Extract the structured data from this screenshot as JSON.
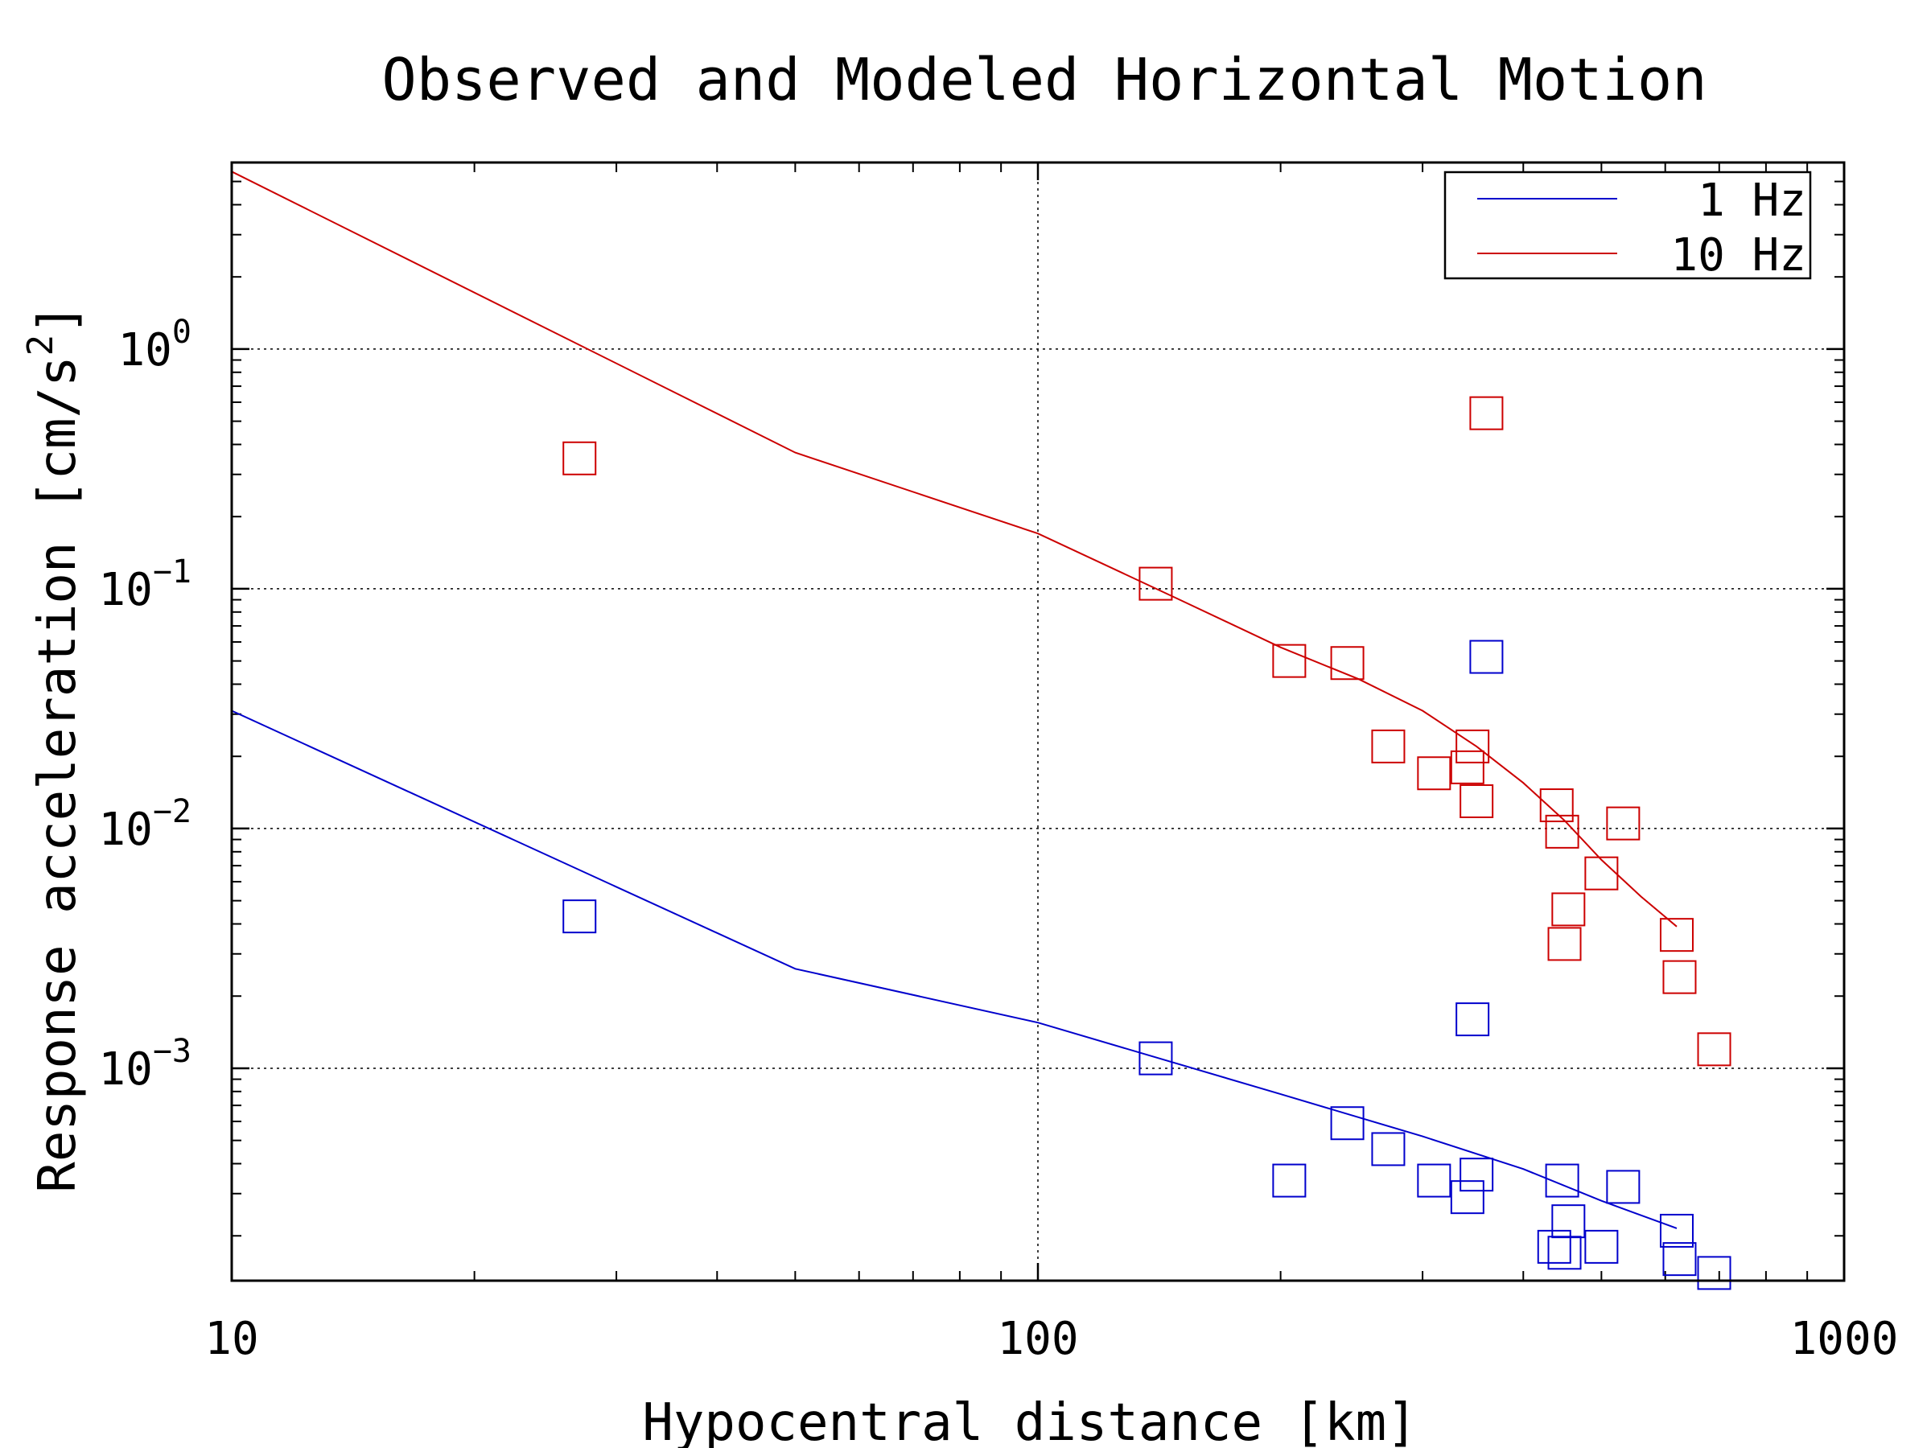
{
  "chart_data": {
    "type": "scatter",
    "title": "Observed and Modeled Horizontal Motion",
    "xlabel": "Hypocentral distance [km]",
    "ylabel_main": "Response acceleration [cm/s",
    "ylabel_sup": "2",
    "ylabel_close": "]",
    "xscale": "log",
    "yscale": "log",
    "xlim": [
      10,
      1000
    ],
    "ylim": [
      0.00013,
      6
    ],
    "grid": true,
    "legend_position": "top-right",
    "x_ticks": [
      {
        "value": 10,
        "label": "10"
      },
      {
        "value": 100,
        "label": "100"
      },
      {
        "value": 1000,
        "label": "1000"
      }
    ],
    "y_ticks": [
      {
        "value": 1,
        "base": "10",
        "exp": "0"
      },
      {
        "value": 0.1,
        "base": "10",
        "exp": "−1"
      },
      {
        "value": 0.01,
        "base": "10",
        "exp": "−2"
      },
      {
        "value": 0.001,
        "base": "10",
        "exp": "−3"
      }
    ],
    "series": [
      {
        "name": "1 Hz",
        "color": "#0000cc",
        "model_line": [
          [
            10,
            0.031
          ],
          [
            50,
            0.0026
          ],
          [
            100,
            0.00155
          ],
          [
            200,
            0.00078
          ],
          [
            300,
            0.00052
          ],
          [
            400,
            0.00038
          ],
          [
            500,
            0.00028
          ],
          [
            620,
            0.000215
          ]
        ],
        "observed": [
          [
            27,
            0.0043
          ],
          [
            140,
            0.0011
          ],
          [
            205,
            0.00034
          ],
          [
            242,
            0.00059
          ],
          [
            272,
            0.00046
          ],
          [
            310,
            0.00034
          ],
          [
            341,
            0.00029
          ],
          [
            346,
            0.0016
          ],
          [
            350,
            0.00036
          ],
          [
            360,
            0.052
          ],
          [
            437,
            0.00018
          ],
          [
            447,
            0.00034
          ],
          [
            450,
            0.00017
          ],
          [
            455,
            0.00023
          ],
          [
            500,
            0.00018
          ],
          [
            532,
            0.00032
          ],
          [
            620,
            0.00021
          ],
          [
            625,
            0.00016
          ],
          [
            690,
            0.00014
          ]
        ]
      },
      {
        "name": "10 Hz",
        "color": "#cc0000",
        "model_line": [
          [
            10,
            5.5
          ],
          [
            50,
            0.37
          ],
          [
            100,
            0.17
          ],
          [
            150,
            0.09
          ],
          [
            200,
            0.057
          ],
          [
            250,
            0.042
          ],
          [
            300,
            0.031
          ],
          [
            350,
            0.022
          ],
          [
            400,
            0.0155
          ],
          [
            450,
            0.0108
          ],
          [
            500,
            0.0074
          ],
          [
            560,
            0.0052
          ],
          [
            620,
            0.0039
          ]
        ],
        "observed": [
          [
            27,
            0.35
          ],
          [
            140,
            0.105
          ],
          [
            205,
            0.05
          ],
          [
            242,
            0.049
          ],
          [
            272,
            0.022
          ],
          [
            310,
            0.017
          ],
          [
            341,
            0.018
          ],
          [
            346,
            0.022
          ],
          [
            350,
            0.013
          ],
          [
            360,
            0.54
          ],
          [
            440,
            0.0125
          ],
          [
            447,
            0.0097
          ],
          [
            450,
            0.0033
          ],
          [
            455,
            0.0046
          ],
          [
            500,
            0.0065
          ],
          [
            532,
            0.0105
          ],
          [
            620,
            0.0036
          ],
          [
            625,
            0.0024
          ],
          [
            690,
            0.0012
          ]
        ]
      }
    ]
  }
}
